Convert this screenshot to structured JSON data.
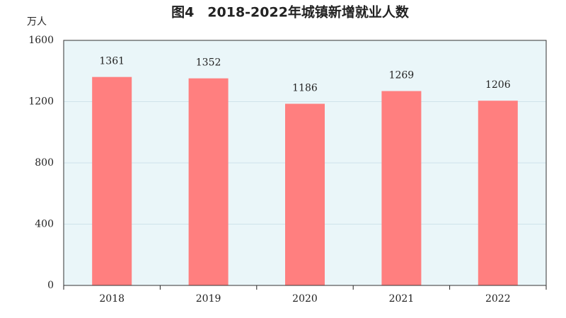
{
  "chart_data": {
    "type": "bar",
    "title": "图4　2018-2022年城镇新增就业人数",
    "y_label": "万人",
    "categories": [
      "2018",
      "2019",
      "2020",
      "2021",
      "2022"
    ],
    "values": [
      1361,
      1352,
      1186,
      1269,
      1206
    ],
    "color": "#ff7f7f",
    "ylim": [
      0,
      1600
    ],
    "yticks": [
      0,
      400,
      800,
      1200,
      1600
    ],
    "grid": true
  }
}
